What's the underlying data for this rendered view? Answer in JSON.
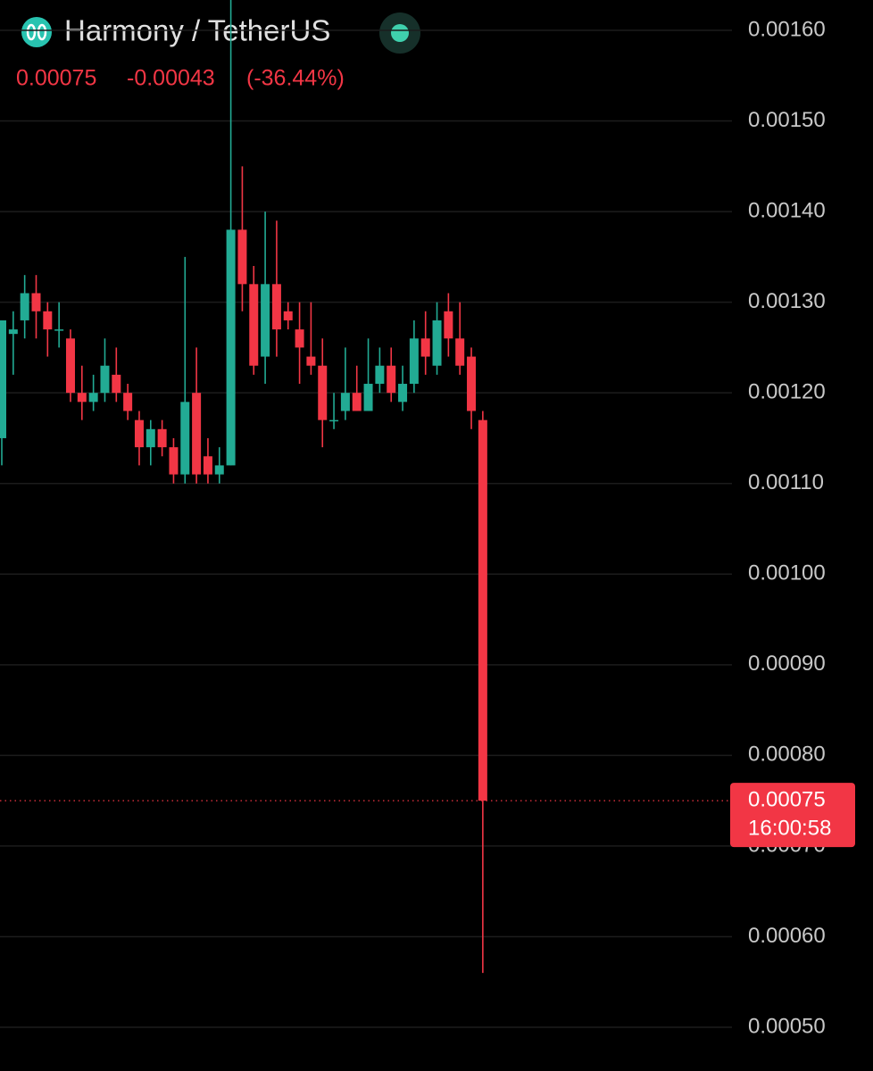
{
  "chart_data": {
    "type": "candlestick",
    "title": "Harmony / TetherUS",
    "quote": {
      "last": 0.00075,
      "change": -0.00043,
      "change_pct": {
        "value": -36.44,
        "label": "(-36.44%)"
      },
      "countdown": "16:00:58"
    },
    "up_color": "#22ab94",
    "down_color": "#f23645",
    "grid": true,
    "ylim": [
      0.0005,
      0.0016
    ],
    "yticks": [
      {
        "value": 0.0016,
        "label": "0.00160"
      },
      {
        "value": 0.0015,
        "label": "0.00150"
      },
      {
        "value": 0.0014,
        "label": "0.00140"
      },
      {
        "value": 0.0013,
        "label": "0.00130"
      },
      {
        "value": 0.0012,
        "label": "0.00120"
      },
      {
        "value": 0.0011,
        "label": "0.00110"
      },
      {
        "value": 0.001,
        "label": "0.00100"
      },
      {
        "value": 0.0009,
        "label": "0.00090"
      },
      {
        "value": 0.0008,
        "label": "0.00080"
      },
      {
        "value": 0.0007,
        "label": "0.00070"
      },
      {
        "value": 0.0006,
        "label": "0.00060"
      },
      {
        "value": 0.0005,
        "label": "0.00050"
      }
    ],
    "open": [
      0.00115,
      0.001265,
      0.00128,
      0.00131,
      0.00129,
      0.00127,
      0.00126,
      0.0012,
      0.00119,
      0.0012,
      0.00122,
      0.0012,
      0.00117,
      0.00114,
      0.00116,
      0.00114,
      0.00111,
      0.0012,
      0.00113,
      0.00111,
      0.00112,
      0.00138,
      0.00132,
      0.00124,
      0.00132,
      0.00129,
      0.00127,
      0.00124,
      0.00123,
      0.00117,
      0.00118,
      0.0012,
      0.00118,
      0.00121,
      0.00123,
      0.00119,
      0.00121,
      0.00126,
      0.00123,
      0.00129,
      0.00126,
      0.00124,
      0.00117
    ],
    "high": [
      0.00128,
      0.00129,
      0.00133,
      0.00133,
      0.0013,
      0.0013,
      0.00127,
      0.00123,
      0.00122,
      0.00126,
      0.00125,
      0.00121,
      0.00118,
      0.00117,
      0.00117,
      0.00115,
      0.00135,
      0.00125,
      0.00115,
      0.00114,
      0.00165,
      0.00145,
      0.00134,
      0.0014,
      0.00139,
      0.0013,
      0.0013,
      0.0013,
      0.00126,
      0.0012,
      0.00125,
      0.00123,
      0.00126,
      0.00125,
      0.00125,
      0.00123,
      0.00128,
      0.00129,
      0.0013,
      0.00131,
      0.0013,
      0.00125,
      0.00118
    ],
    "low": [
      0.00112,
      0.00122,
      0.00126,
      0.00126,
      0.00124,
      0.00125,
      0.00119,
      0.00117,
      0.00118,
      0.00119,
      0.00119,
      0.00117,
      0.00112,
      0.00112,
      0.00113,
      0.0011,
      0.0011,
      0.0011,
      0.0011,
      0.0011,
      0.00112,
      0.00129,
      0.00122,
      0.00121,
      0.00124,
      0.00127,
      0.00121,
      0.00122,
      0.00114,
      0.00116,
      0.00117,
      0.00118,
      0.00118,
      0.0012,
      0.00119,
      0.00118,
      0.0012,
      0.00122,
      0.00122,
      0.00124,
      0.00122,
      0.00116,
      0.00056
    ],
    "close": [
      0.00128,
      0.00127,
      0.00131,
      0.00129,
      0.00127,
      0.00127,
      0.0012,
      0.00119,
      0.0012,
      0.00123,
      0.0012,
      0.00118,
      0.00114,
      0.00116,
      0.00114,
      0.00111,
      0.00119,
      0.00111,
      0.00111,
      0.00112,
      0.00138,
      0.00132,
      0.00123,
      0.00132,
      0.00127,
      0.00128,
      0.00125,
      0.00123,
      0.00117,
      0.00117,
      0.0012,
      0.00118,
      0.00121,
      0.00123,
      0.0012,
      0.00121,
      0.00126,
      0.00124,
      0.00128,
      0.00126,
      0.00123,
      0.00118,
      0.00075
    ]
  }
}
